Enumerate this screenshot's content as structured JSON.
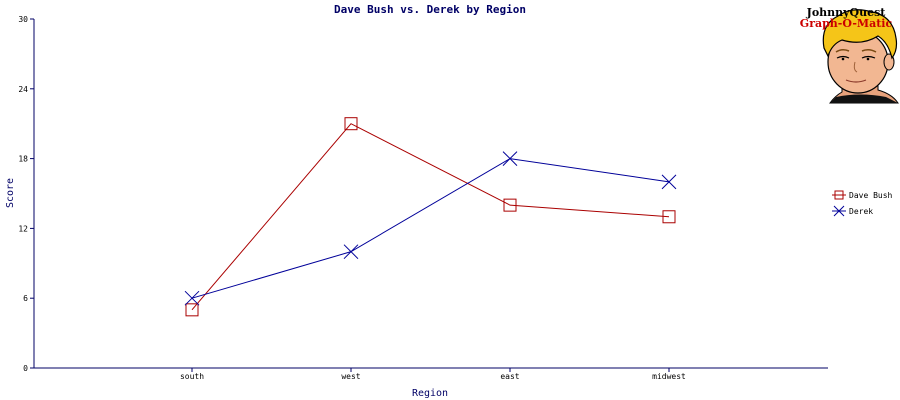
{
  "chart_data": {
    "type": "line",
    "title": "Dave Bush vs. Derek by Region",
    "xlabel": "Region",
    "ylabel": "Score",
    "categories": [
      "south",
      "west",
      "east",
      "midwest"
    ],
    "ylim": [
      0,
      30
    ],
    "yticks": [
      0,
      6,
      12,
      18,
      24,
      30
    ],
    "grid": false,
    "legend_position": "right",
    "series": [
      {
        "name": "Dave Bush",
        "values": [
          5,
          21,
          14,
          13
        ],
        "color": "#aa0000",
        "marker": "square"
      },
      {
        "name": "Derek",
        "values": [
          6,
          10,
          18,
          16
        ],
        "color": "#000099",
        "marker": "x"
      }
    ]
  },
  "logo": {
    "line1": "JohnnyQuest",
    "line2": "Graph-O-Matic"
  }
}
